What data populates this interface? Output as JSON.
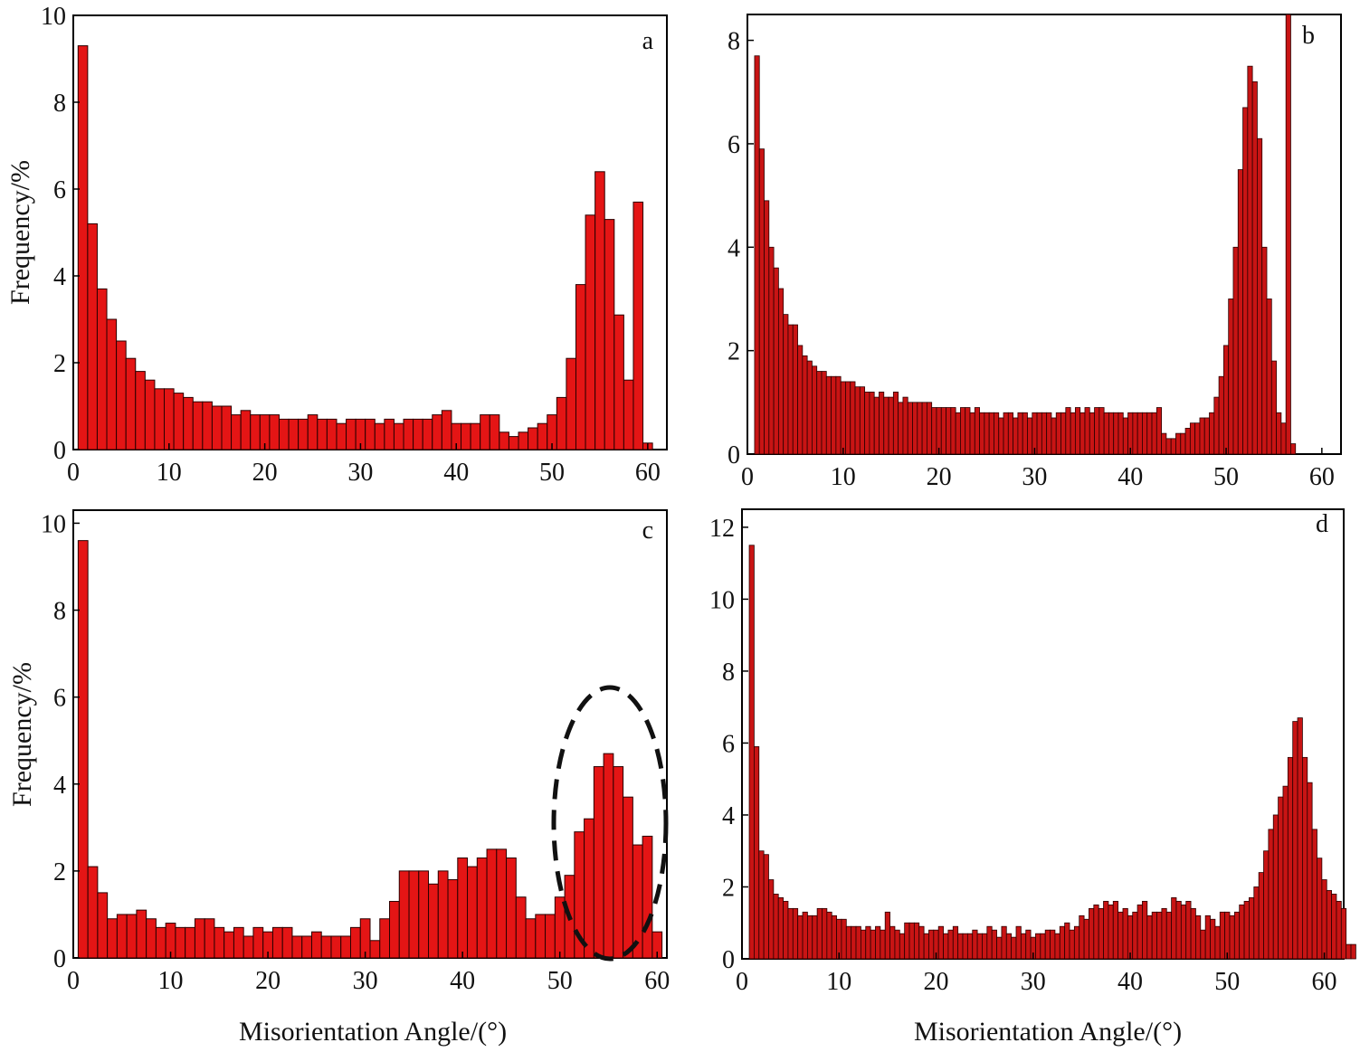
{
  "chart_data": [
    {
      "panel": "a",
      "type": "bar",
      "ylabel": "Frequency/%",
      "xlabel": "",
      "xlim": [
        0,
        62
      ],
      "ylim": [
        0,
        10
      ],
      "xticks": [
        0,
        10,
        20,
        30,
        40,
        50,
        60
      ],
      "yticks": [
        0,
        2,
        4,
        6,
        8,
        10
      ],
      "bin_width": 1,
      "x_start": 1,
      "values": [
        9.3,
        5.2,
        3.7,
        3.0,
        2.5,
        2.1,
        1.8,
        1.6,
        1.4,
        1.4,
        1.3,
        1.2,
        1.1,
        1.1,
        1.0,
        1.0,
        0.8,
        0.9,
        0.8,
        0.8,
        0.8,
        0.7,
        0.7,
        0.7,
        0.8,
        0.7,
        0.7,
        0.6,
        0.7,
        0.7,
        0.7,
        0.6,
        0.7,
        0.6,
        0.7,
        0.7,
        0.7,
        0.8,
        0.9,
        0.6,
        0.6,
        0.6,
        0.8,
        0.8,
        0.4,
        0.3,
        0.4,
        0.5,
        0.6,
        0.8,
        1.2,
        2.1,
        3.8,
        5.4,
        6.4,
        5.3,
        3.1,
        1.6,
        5.7,
        0.15
      ],
      "color": "#e41515"
    },
    {
      "panel": "b",
      "type": "bar",
      "ylabel": "",
      "xlabel": "",
      "xlim": [
        0,
        62
      ],
      "ylim": [
        0,
        8.5
      ],
      "xticks": [
        0,
        10,
        20,
        30,
        40,
        50,
        60
      ],
      "yticks": [
        0,
        2,
        4,
        6,
        8
      ],
      "bin_width": 0.5,
      "x_start": 1,
      "values": [
        7.7,
        5.9,
        4.9,
        4.0,
        3.6,
        3.2,
        2.7,
        2.5,
        2.5,
        2.1,
        1.9,
        1.8,
        1.7,
        1.6,
        1.6,
        1.5,
        1.5,
        1.5,
        1.4,
        1.4,
        1.4,
        1.3,
        1.3,
        1.2,
        1.2,
        1.1,
        1.2,
        1.1,
        1.1,
        1.2,
        1.0,
        1.1,
        1.0,
        1.0,
        1.0,
        1.0,
        1.0,
        0.9,
        0.9,
        0.9,
        0.9,
        0.9,
        0.8,
        0.9,
        0.9,
        0.8,
        0.9,
        0.8,
        0.8,
        0.8,
        0.8,
        0.7,
        0.8,
        0.8,
        0.7,
        0.8,
        0.8,
        0.7,
        0.8,
        0.8,
        0.8,
        0.8,
        0.7,
        0.8,
        0.8,
        0.9,
        0.8,
        0.9,
        0.8,
        0.9,
        0.8,
        0.9,
        0.9,
        0.8,
        0.8,
        0.8,
        0.8,
        0.7,
        0.8,
        0.8,
        0.8,
        0.8,
        0.8,
        0.8,
        0.9,
        0.4,
        0.3,
        0.3,
        0.4,
        0.4,
        0.5,
        0.6,
        0.6,
        0.7,
        0.7,
        0.8,
        1.1,
        1.5,
        2.1,
        3.0,
        4.0,
        5.5,
        6.7,
        7.5,
        7.2,
        6.1,
        4.0,
        3.0,
        1.8,
        0.8,
        0.6,
        8.7,
        0.2
      ],
      "color": "#c81414"
    },
    {
      "panel": "c",
      "type": "bar",
      "ylabel": "Frequency/%",
      "xlabel": "Misorientation Angle/(°)",
      "xlim": [
        0,
        61
      ],
      "ylim": [
        0,
        10.3
      ],
      "xticks": [
        0,
        10,
        20,
        30,
        40,
        50,
        60
      ],
      "yticks": [
        0,
        2,
        4,
        6,
        8,
        10
      ],
      "bin_width": 1,
      "x_start": 1,
      "values": [
        9.6,
        2.1,
        1.5,
        0.9,
        1.0,
        1.0,
        1.1,
        0.9,
        0.7,
        0.8,
        0.7,
        0.7,
        0.9,
        0.9,
        0.7,
        0.6,
        0.7,
        0.5,
        0.7,
        0.6,
        0.7,
        0.7,
        0.5,
        0.5,
        0.6,
        0.5,
        0.5,
        0.5,
        0.7,
        0.9,
        0.4,
        0.9,
        1.3,
        2.0,
        2.0,
        2.0,
        1.7,
        2.0,
        1.8,
        2.3,
        2.1,
        2.3,
        2.5,
        2.5,
        2.3,
        1.4,
        0.9,
        1.0,
        1.0,
        1.4,
        1.9,
        2.9,
        3.2,
        4.4,
        4.7,
        4.4,
        3.7,
        2.6,
        2.8,
        0.6
      ],
      "annotation": "dashed ellipse around 50–60° peak",
      "color": "#e41515"
    },
    {
      "panel": "d",
      "type": "bar",
      "ylabel": "",
      "xlabel": "Misorientation Angle/(°)",
      "xlim": [
        0,
        62
      ],
      "ylim": [
        0,
        12.5
      ],
      "xticks": [
        0,
        10,
        20,
        30,
        40,
        50,
        60
      ],
      "yticks": [
        0,
        2,
        4,
        6,
        8,
        10,
        12
      ],
      "bin_width": 0.5,
      "x_start": 1,
      "values": [
        11.5,
        5.9,
        3.0,
        2.9,
        2.2,
        1.8,
        1.7,
        1.6,
        1.4,
        1.4,
        1.2,
        1.3,
        1.2,
        1.2,
        1.4,
        1.4,
        1.3,
        1.2,
        1.1,
        1.1,
        0.9,
        0.9,
        0.9,
        0.8,
        0.9,
        0.8,
        0.9,
        0.8,
        1.3,
        0.9,
        0.8,
        0.7,
        1.0,
        1.0,
        1.0,
        0.9,
        0.7,
        0.8,
        0.8,
        0.9,
        0.7,
        0.8,
        0.9,
        0.7,
        0.7,
        0.7,
        0.8,
        0.7,
        0.7,
        0.9,
        0.8,
        0.6,
        0.9,
        0.7,
        0.6,
        0.9,
        0.7,
        0.8,
        0.6,
        0.7,
        0.7,
        0.8,
        0.8,
        0.7,
        0.9,
        1.0,
        0.8,
        0.9,
        1.2,
        1.1,
        1.4,
        1.5,
        1.4,
        1.6,
        1.5,
        1.6,
        1.3,
        1.4,
        1.2,
        1.3,
        1.5,
        1.6,
        1.2,
        1.3,
        1.3,
        1.4,
        1.3,
        1.7,
        1.6,
        1.5,
        1.6,
        1.4,
        1.2,
        0.8,
        1.2,
        1.1,
        0.9,
        1.3,
        1.3,
        1.2,
        1.3,
        1.5,
        1.6,
        1.7,
        2.0,
        2.4,
        3.0,
        3.6,
        4.0,
        4.5,
        4.8,
        5.6,
        6.6,
        6.7,
        5.6,
        4.9,
        3.6,
        2.8,
        2.2,
        1.9,
        1.8,
        1.6,
        1.4,
        0.4,
        0.4
      ],
      "color": "#c81414"
    }
  ]
}
